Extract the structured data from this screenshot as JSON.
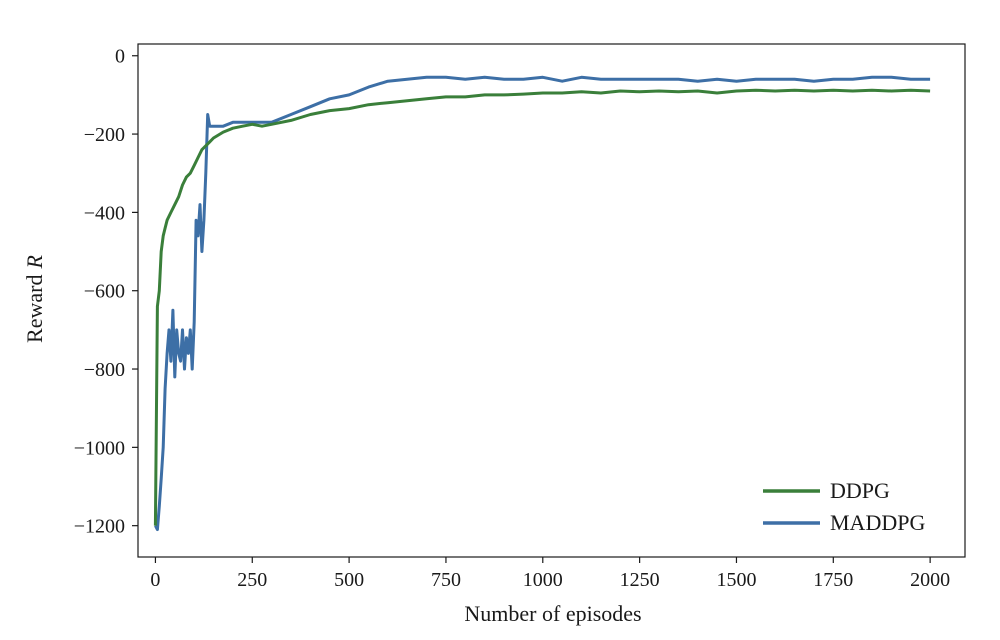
{
  "chart_data": {
    "type": "line",
    "xlabel": "Number of episodes",
    "ylabel": "Reward",
    "ylabel_italic": "R",
    "xlim": [
      -45,
      2090
    ],
    "ylim": [
      -1280,
      30
    ],
    "xticks": [
      0,
      250,
      500,
      750,
      1000,
      1250,
      1500,
      1750,
      2000
    ],
    "yticks": [
      0,
      -200,
      -400,
      -600,
      -800,
      -1000,
      -1200
    ],
    "ytick_labels": [
      "0",
      "−200",
      "−400",
      "−600",
      "−800",
      "−1000",
      "−1200"
    ],
    "grid": false,
    "legend_position": "bottom-right",
    "series": [
      {
        "name": "MADDPG",
        "color": "#3d6fa6",
        "x": [
          0,
          5,
          10,
          15,
          20,
          25,
          30,
          35,
          40,
          45,
          50,
          55,
          60,
          65,
          70,
          75,
          80,
          85,
          90,
          95,
          100,
          105,
          110,
          115,
          120,
          125,
          130,
          135,
          140,
          150,
          175,
          200,
          250,
          300,
          350,
          400,
          450,
          500,
          550,
          600,
          650,
          700,
          750,
          800,
          850,
          900,
          950,
          1000,
          1050,
          1100,
          1150,
          1200,
          1250,
          1300,
          1350,
          1400,
          1450,
          1500,
          1550,
          1600,
          1650,
          1700,
          1750,
          1800,
          1850,
          1900,
          1950,
          2000
        ],
        "y": [
          -1200,
          -1210,
          -1150,
          -1080,
          -1000,
          -850,
          -760,
          -700,
          -780,
          -650,
          -820,
          -700,
          -760,
          -780,
          -700,
          -800,
          -720,
          -760,
          -700,
          -800,
          -680,
          -420,
          -460,
          -380,
          -500,
          -420,
          -300,
          -150,
          -180,
          -180,
          -180,
          -170,
          -170,
          -170,
          -150,
          -130,
          -110,
          -100,
          -80,
          -65,
          -60,
          -55,
          -55,
          -60,
          -55,
          -60,
          -60,
          -55,
          -65,
          -55,
          -60,
          -60,
          -60,
          -60,
          -60,
          -65,
          -60,
          -65,
          -60,
          -60,
          -60,
          -65,
          -60,
          -60,
          -55,
          -55,
          -60,
          -60
        ]
      },
      {
        "name": "DDPG",
        "color": "#3a7f3a",
        "x": [
          0,
          5,
          10,
          15,
          20,
          25,
          30,
          40,
          50,
          60,
          70,
          80,
          90,
          100,
          110,
          120,
          130,
          140,
          150,
          175,
          200,
          225,
          250,
          275,
          300,
          350,
          400,
          450,
          500,
          550,
          600,
          650,
          700,
          750,
          800,
          850,
          900,
          950,
          1000,
          1050,
          1100,
          1150,
          1200,
          1250,
          1300,
          1350,
          1400,
          1450,
          1500,
          1550,
          1600,
          1650,
          1700,
          1750,
          1800,
          1850,
          1900,
          1950,
          2000
        ],
        "y": [
          -1200,
          -640,
          -600,
          -500,
          -460,
          -440,
          -420,
          -400,
          -380,
          -360,
          -330,
          -310,
          -300,
          -280,
          -260,
          -240,
          -230,
          -220,
          -210,
          -195,
          -185,
          -180,
          -175,
          -180,
          -175,
          -165,
          -150,
          -140,
          -135,
          -125,
          -120,
          -115,
          -110,
          -105,
          -105,
          -100,
          -100,
          -98,
          -95,
          -95,
          -92,
          -95,
          -90,
          -92,
          -90,
          -92,
          -90,
          -95,
          -90,
          -88,
          -90,
          -88,
          -90,
          -88,
          -90,
          -88,
          -90,
          -88,
          -90
        ]
      }
    ]
  }
}
